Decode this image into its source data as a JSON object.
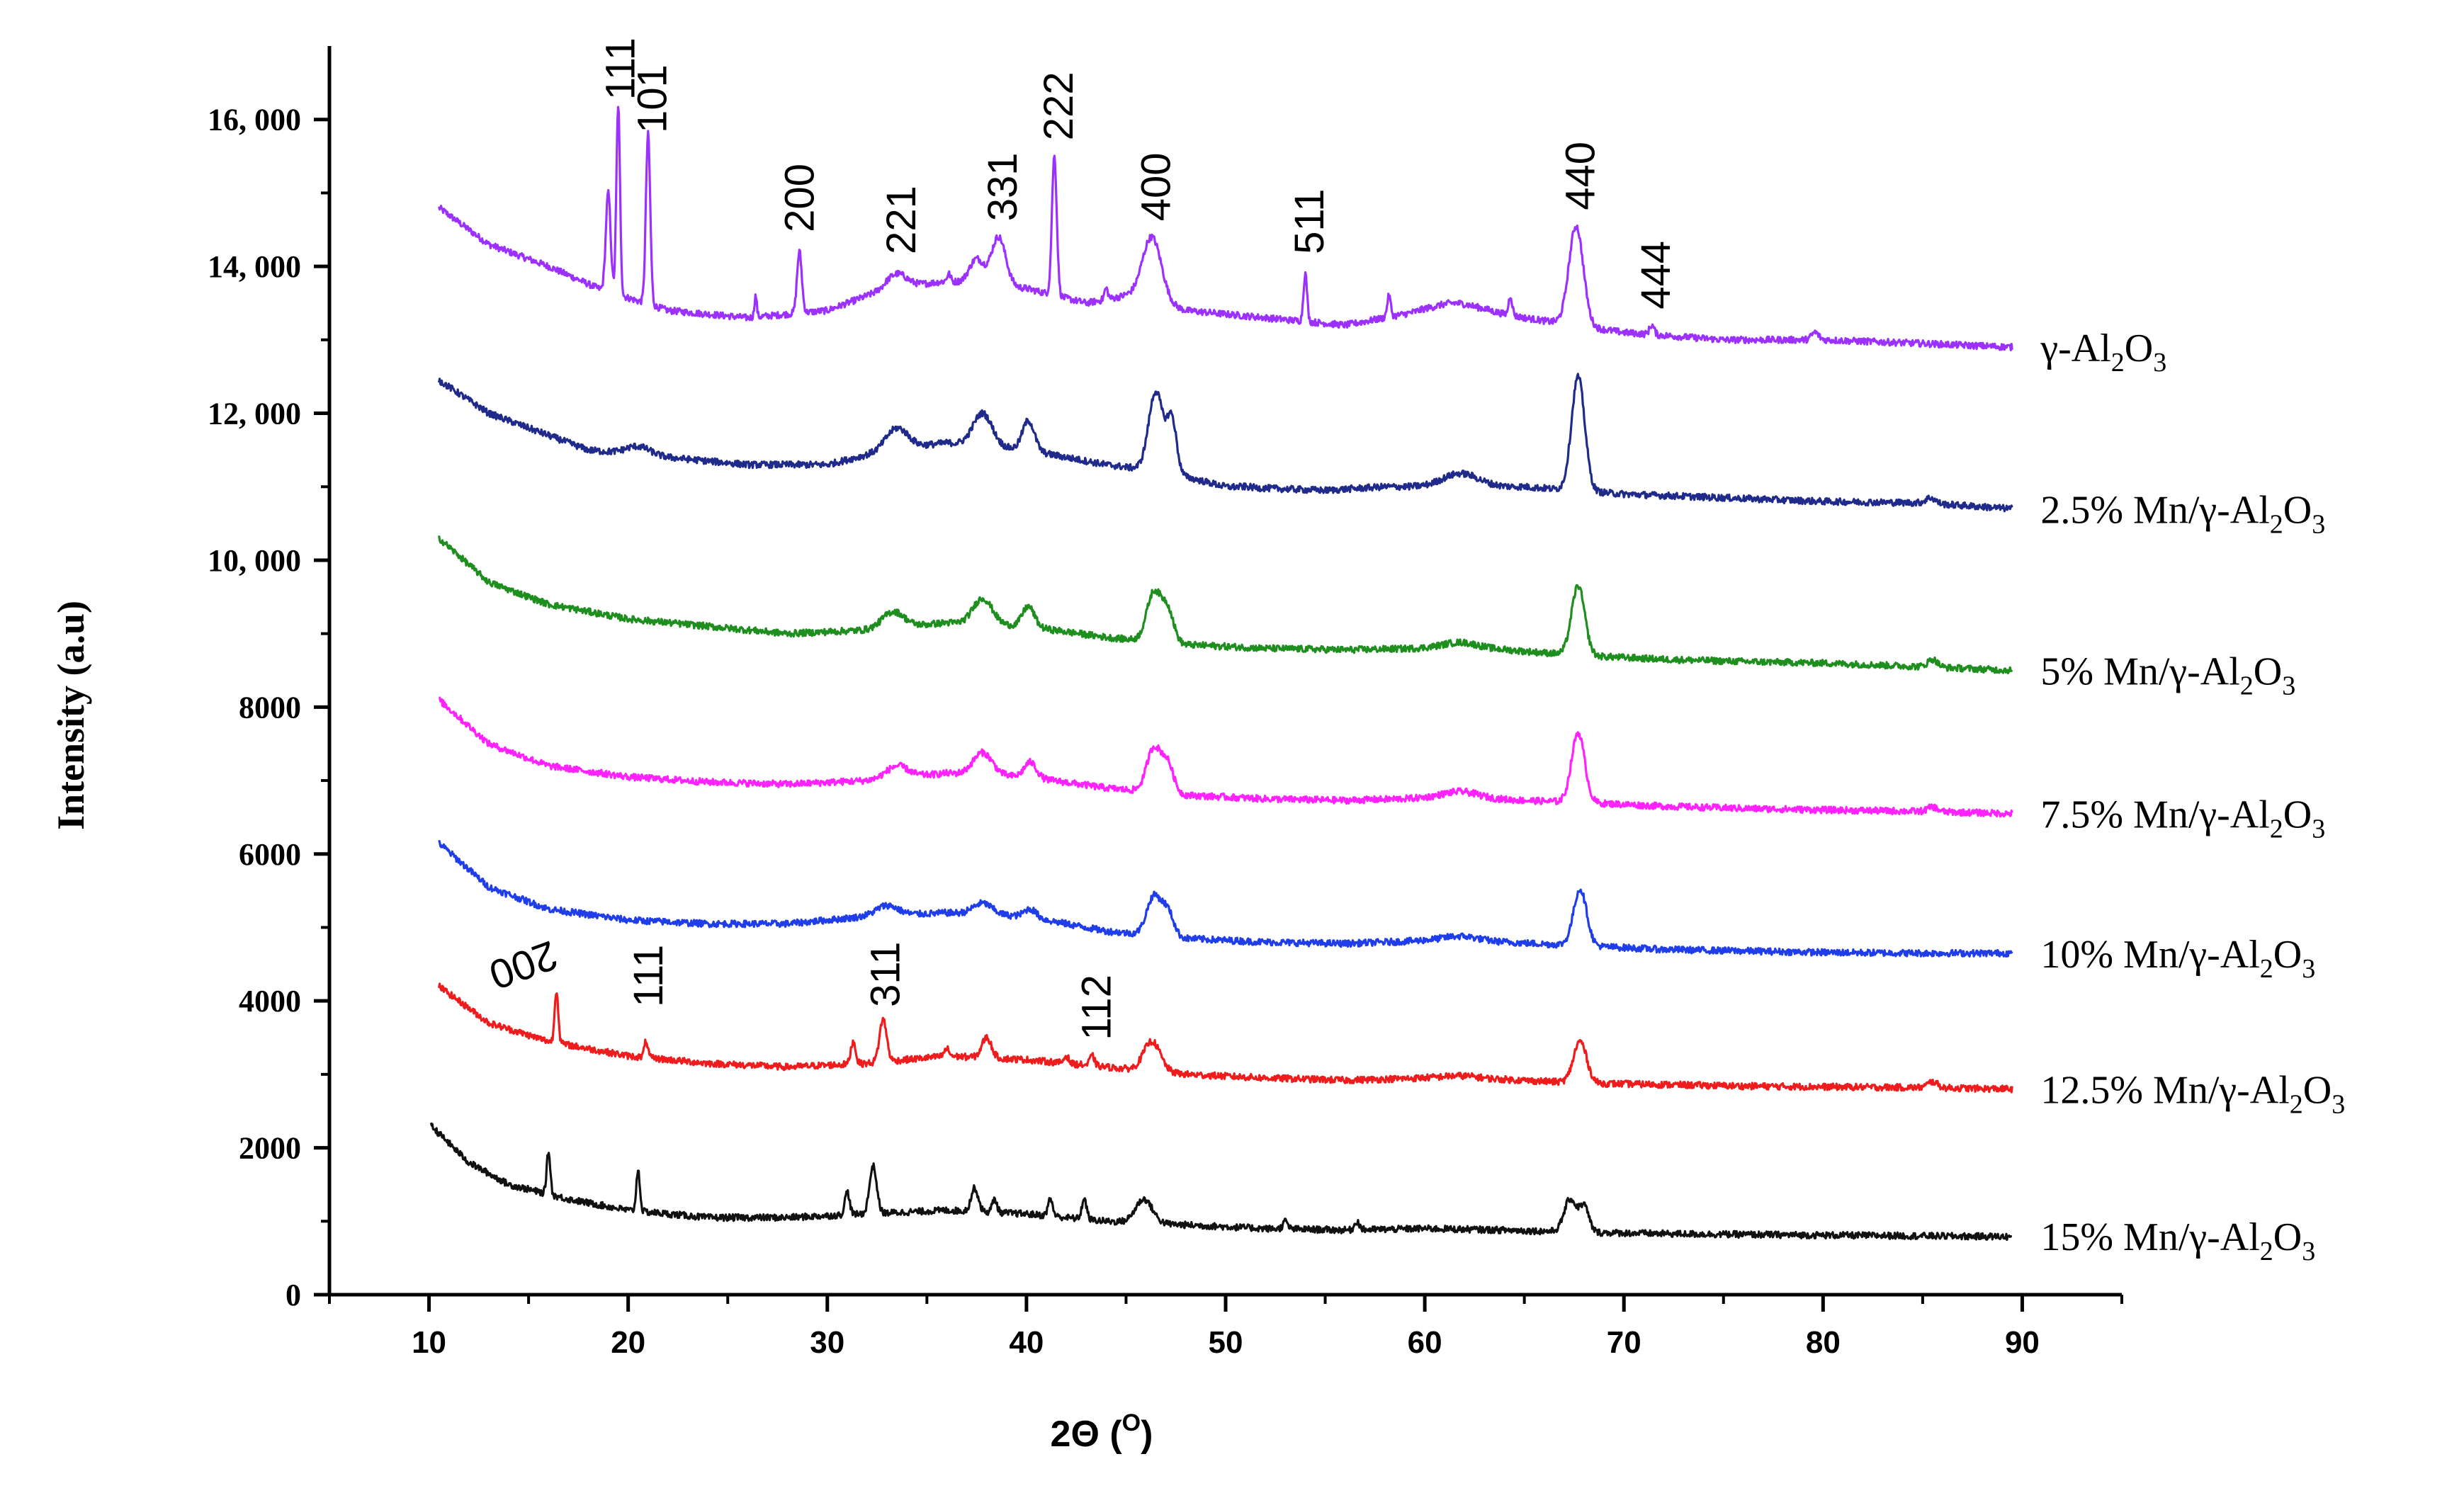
{
  "chart_data": {
    "type": "line",
    "title": "",
    "xlabel": "2Θ (⁰)",
    "xlabel_main": "2Θ (",
    "xlabel_sup": "O",
    "xlabel_close": ")",
    "ylabel": "Intensity (a.u)",
    "xlim": [
      5,
      95
    ],
    "ylim": [
      0,
      17000
    ],
    "x_ticks": [
      10,
      20,
      30,
      40,
      50,
      60,
      70,
      80,
      90
    ],
    "x_tick_labels": [
      "10",
      "20",
      "30",
      "40",
      "50",
      "60",
      "70",
      "80",
      "90"
    ],
    "y_ticks": [
      0,
      2000,
      4000,
      6000,
      8000,
      10000,
      12000,
      14000,
      16000
    ],
    "y_tick_labels": [
      "0",
      "2000",
      "4000",
      "6000",
      "8000",
      "10, 000",
      "12, 000",
      "14, 000",
      "16, 000"
    ],
    "series": [
      {
        "name": "γ-Al2O3",
        "label_main": "γ-Al",
        "label_sub1": "2",
        "label_mid": "O",
        "label_sub2": "3",
        "color": "#9b30ff",
        "start": 14800,
        "end": 12900,
        "base": [
          [
            10.5,
            14800
          ],
          [
            13,
            14300
          ],
          [
            16,
            14000
          ],
          [
            18.5,
            13700
          ],
          [
            22,
            13400
          ],
          [
            26,
            13300
          ],
          [
            30,
            13400
          ],
          [
            33,
            13700
          ],
          [
            36,
            13800
          ],
          [
            40,
            13700
          ],
          [
            43,
            13500
          ],
          [
            45,
            13600
          ],
          [
            48,
            13400
          ],
          [
            52,
            13300
          ],
          [
            56,
            13200
          ],
          [
            60,
            13400
          ],
          [
            63,
            13400
          ],
          [
            65,
            13300
          ],
          [
            70,
            13100
          ],
          [
            75,
            13000
          ],
          [
            80,
            13000
          ],
          [
            85,
            12950
          ],
          [
            89.5,
            12900
          ]
        ],
        "peaks": [
          [
            19.0,
            15000,
            0.2
          ],
          [
            19.5,
            16200,
            0.15
          ],
          [
            21.0,
            15800,
            0.18
          ],
          [
            26.4,
            13600,
            0.1
          ],
          [
            28.6,
            14200,
            0.2
          ],
          [
            33.5,
            13900,
            0.8
          ],
          [
            36.1,
            13900,
            0.15
          ],
          [
            37.5,
            14100,
            0.6
          ],
          [
            38.6,
            14400,
            0.6
          ],
          [
            41.4,
            15500,
            0.2
          ],
          [
            44.0,
            13700,
            0.15
          ],
          [
            46.3,
            14400,
            0.8
          ],
          [
            54.0,
            13900,
            0.15
          ],
          [
            58.2,
            13600,
            0.15
          ],
          [
            61.5,
            13500,
            1.5
          ],
          [
            64.3,
            13600,
            0.15
          ],
          [
            67.6,
            14550,
            0.6
          ],
          [
            71.4,
            13200,
            0.2
          ],
          [
            79.6,
            13100,
            0.3
          ]
        ]
      },
      {
        "name": "2.5% Mn/γ-Al2O3",
        "label_main": "2.5% Mn/γ-Al",
        "label_sub1": "2",
        "label_mid": "O",
        "label_sub2": "3",
        "color": "#1f2a8a",
        "start": 12450,
        "end": 10700,
        "base": [
          [
            10.5,
            12450
          ],
          [
            13,
            12000
          ],
          [
            16,
            11700
          ],
          [
            18,
            11500
          ],
          [
            22,
            11400
          ],
          [
            26,
            11300
          ],
          [
            30,
            11300
          ],
          [
            33,
            11500
          ],
          [
            36,
            11600
          ],
          [
            40,
            11500
          ],
          [
            44,
            11300
          ],
          [
            47,
            11200
          ],
          [
            50,
            11000
          ],
          [
            55,
            10950
          ],
          [
            58,
            11000
          ],
          [
            62,
            11000
          ],
          [
            65,
            11000
          ],
          [
            70,
            10900
          ],
          [
            75,
            10850
          ],
          [
            80,
            10800
          ],
          [
            85,
            10780
          ],
          [
            89.5,
            10700
          ]
        ],
        "peaks": [
          [
            20.5,
            11550,
            1.0
          ],
          [
            33.5,
            11800,
            0.9
          ],
          [
            37.8,
            12000,
            0.8
          ],
          [
            40.1,
            11900,
            0.5
          ],
          [
            46.5,
            12300,
            0.6
          ],
          [
            47.3,
            11900,
            0.4
          ],
          [
            51.0,
            11000,
            0.5
          ],
          [
            61.8,
            11180,
            1.5
          ],
          [
            67.7,
            12500,
            0.55
          ],
          [
            85.4,
            10850,
            0.4
          ]
        ]
      },
      {
        "name": "5% Mn/γ-Al2O3",
        "label_main": "5% Mn/γ-Al",
        "label_sub1": "2",
        "label_mid": "O",
        "label_sub2": "3",
        "color": "#1e8f1e",
        "start": 10300,
        "end": 8500,
        "base": [
          [
            10.5,
            10300
          ],
          [
            13,
            9700
          ],
          [
            16,
            9400
          ],
          [
            20,
            9200
          ],
          [
            24,
            9100
          ],
          [
            28,
            9000
          ],
          [
            32,
            9050
          ],
          [
            36,
            9150
          ],
          [
            40,
            9100
          ],
          [
            44,
            8950
          ],
          [
            48,
            8850
          ],
          [
            52,
            8800
          ],
          [
            56,
            8780
          ],
          [
            60,
            8800
          ],
          [
            64,
            8780
          ],
          [
            68,
            8700
          ],
          [
            72,
            8650
          ],
          [
            76,
            8620
          ],
          [
            80,
            8600
          ],
          [
            85,
            8550
          ],
          [
            89.5,
            8500
          ]
        ],
        "peaks": [
          [
            33.3,
            9300,
            0.9
          ],
          [
            37.8,
            9480,
            0.8
          ],
          [
            40.1,
            9370,
            0.5
          ],
          [
            46.4,
            9560,
            0.6
          ],
          [
            47.1,
            9300,
            0.5
          ],
          [
            61.8,
            8880,
            1.5
          ],
          [
            67.7,
            9650,
            0.55
          ],
          [
            85.5,
            8650,
            0.4
          ]
        ]
      },
      {
        "name": "7.5% Mn/γ-Al2O3",
        "label_main": "7.5% Mn/γ-Al",
        "label_sub1": "2",
        "label_mid": "O",
        "label_sub2": "3",
        "color": "#ff22ff",
        "start": 8100,
        "end": 6550,
        "base": [
          [
            10.5,
            8100
          ],
          [
            13,
            7500
          ],
          [
            16,
            7200
          ],
          [
            20,
            7050
          ],
          [
            24,
            6980
          ],
          [
            28,
            6950
          ],
          [
            32,
            7000
          ],
          [
            36,
            7100
          ],
          [
            40,
            7050
          ],
          [
            44,
            6900
          ],
          [
            48,
            6800
          ],
          [
            52,
            6750
          ],
          [
            56,
            6730
          ],
          [
            60,
            6760
          ],
          [
            64,
            6740
          ],
          [
            68,
            6700
          ],
          [
            72,
            6650
          ],
          [
            76,
            6620
          ],
          [
            80,
            6600
          ],
          [
            85,
            6580
          ],
          [
            89.5,
            6550
          ]
        ],
        "peaks": [
          [
            33.5,
            7200,
            0.9
          ],
          [
            37.8,
            7380,
            0.8
          ],
          [
            40.2,
            7250,
            0.5
          ],
          [
            46.4,
            7440,
            0.6
          ],
          [
            47.1,
            7200,
            0.5
          ],
          [
            61.8,
            6850,
            1.5
          ],
          [
            67.7,
            7650,
            0.55
          ],
          [
            85.5,
            6640,
            0.4
          ]
        ]
      },
      {
        "name": "10% Mn/γ-Al2O3",
        "label_main": "10% Mn/γ-Al",
        "label_sub1": "2",
        "label_mid": "O",
        "label_sub2": "3",
        "color": "#1f3de8",
        "start": 6150,
        "end": 4650,
        "base": [
          [
            10.5,
            6150
          ],
          [
            13,
            5550
          ],
          [
            16,
            5250
          ],
          [
            20,
            5100
          ],
          [
            24,
            5050
          ],
          [
            28,
            5050
          ],
          [
            32,
            5150
          ],
          [
            36,
            5200
          ],
          [
            40,
            5150
          ],
          [
            44,
            4950
          ],
          [
            48,
            4850
          ],
          [
            52,
            4800
          ],
          [
            56,
            4780
          ],
          [
            60,
            4820
          ],
          [
            64,
            4800
          ],
          [
            68,
            4750
          ],
          [
            72,
            4700
          ],
          [
            76,
            4680
          ],
          [
            80,
            4660
          ],
          [
            85,
            4650
          ],
          [
            89.5,
            4650
          ]
        ],
        "peaks": [
          [
            33.0,
            5300,
            0.9
          ],
          [
            37.8,
            5330,
            0.8
          ],
          [
            40.2,
            5250,
            0.5
          ],
          [
            46.4,
            5420,
            0.6
          ],
          [
            47.1,
            5200,
            0.5
          ],
          [
            61.8,
            4880,
            1.5
          ],
          [
            67.8,
            5520,
            0.55
          ]
        ]
      },
      {
        "name": "12.5% Mn/γ-Al2O3",
        "label_main": "12.5% Mn/γ-Al",
        "label_sub1": "2",
        "label_mid": "O",
        "label_sub2": "3",
        "color": "#ee1c1c",
        "start": 4200,
        "end": 2800,
        "base": [
          [
            10.5,
            4200
          ],
          [
            13,
            3700
          ],
          [
            16,
            3450
          ],
          [
            20,
            3250
          ],
          [
            24,
            3150
          ],
          [
            28,
            3100
          ],
          [
            32,
            3150
          ],
          [
            36,
            3250
          ],
          [
            40,
            3200
          ],
          [
            44,
            3100
          ],
          [
            48,
            3000
          ],
          [
            52,
            2950
          ],
          [
            56,
            2920
          ],
          [
            60,
            2950
          ],
          [
            64,
            2930
          ],
          [
            68,
            2880
          ],
          [
            72,
            2860
          ],
          [
            76,
            2840
          ],
          [
            80,
            2830
          ],
          [
            85,
            2820
          ],
          [
            89.5,
            2800
          ]
        ],
        "peaks": [
          [
            16.4,
            4150,
            0.15
          ],
          [
            20.9,
            3450,
            0.15
          ],
          [
            31.3,
            3450,
            0.2
          ],
          [
            32.8,
            3750,
            0.3
          ],
          [
            36.0,
            3350,
            0.2
          ],
          [
            38.0,
            3500,
            0.4
          ],
          [
            42.0,
            3250,
            0.2
          ],
          [
            43.3,
            3250,
            0.2
          ],
          [
            46.3,
            3450,
            0.7
          ],
          [
            61.8,
            2980,
            1.5
          ],
          [
            67.8,
            3450,
            0.55
          ],
          [
            85.5,
            2900,
            0.4
          ]
        ]
      },
      {
        "name": "15% Mn/γ-Al2O3",
        "label_main": "15% Mn/γ-Al",
        "label_sub1": "2",
        "label_mid": "O",
        "label_sub2": "3",
        "color": "#111111",
        "start": 2300,
        "end": 800,
        "base": [
          [
            10.1,
            2300
          ],
          [
            12,
            1800
          ],
          [
            14,
            1500
          ],
          [
            17,
            1300
          ],
          [
            20,
            1150
          ],
          [
            24,
            1050
          ],
          [
            28,
            1050
          ],
          [
            32,
            1100
          ],
          [
            36,
            1150
          ],
          [
            40,
            1100
          ],
          [
            44,
            1000
          ],
          [
            48,
            950
          ],
          [
            52,
            900
          ],
          [
            56,
            880
          ],
          [
            60,
            900
          ],
          [
            64,
            880
          ],
          [
            68,
            850
          ],
          [
            72,
            830
          ],
          [
            76,
            820
          ],
          [
            80,
            810
          ],
          [
            85,
            800
          ],
          [
            89.5,
            790
          ]
        ],
        "peaks": [
          [
            16.0,
            1950,
            0.15
          ],
          [
            20.5,
            1700,
            0.15
          ],
          [
            31.0,
            1400,
            0.2
          ],
          [
            32.3,
            1750,
            0.3
          ],
          [
            37.4,
            1450,
            0.3
          ],
          [
            38.4,
            1300,
            0.2
          ],
          [
            41.2,
            1300,
            0.2
          ],
          [
            42.9,
            1300,
            0.2
          ],
          [
            45.9,
            1300,
            0.7
          ],
          [
            53.0,
            1000,
            0.2
          ],
          [
            56.6,
            1000,
            0.2
          ],
          [
            67.3,
            1300,
            0.5
          ],
          [
            68.0,
            1200,
            0.4
          ]
        ]
      }
    ],
    "annotations": [
      {
        "text": "111",
        "x": 19.6,
        "y": 16150,
        "rotate": 90
      },
      {
        "text": "101",
        "x": 21.2,
        "y": 15700,
        "rotate": 90
      },
      {
        "text": "200",
        "x": 28.6,
        "y": 14350,
        "rotate": 90
      },
      {
        "text": "221",
        "x": 33.7,
        "y": 14050,
        "rotate": 90
      },
      {
        "text": "331",
        "x": 38.8,
        "y": 14500,
        "rotate": 90
      },
      {
        "text": "222",
        "x": 41.6,
        "y": 15600,
        "rotate": 90
      },
      {
        "text": "400",
        "x": 46.5,
        "y": 14500,
        "rotate": 90
      },
      {
        "text": "511",
        "x": 54.2,
        "y": 14050,
        "rotate": 90
      },
      {
        "text": "440",
        "x": 67.8,
        "y": 14650,
        "rotate": 90
      },
      {
        "text": "444",
        "x": 71.6,
        "y": 13300,
        "rotate": 90
      },
      {
        "text": "200",
        "x": 14.5,
        "y": 4550,
        "rotate": 160
      },
      {
        "text": "111",
        "x": 21.0,
        "y": 3800,
        "rotate": 90
      },
      {
        "text": "311",
        "x": 32.9,
        "y": 3800,
        "rotate": 90
      },
      {
        "text": "112",
        "x": 43.5,
        "y": 3350,
        "rotate": 90
      }
    ]
  }
}
